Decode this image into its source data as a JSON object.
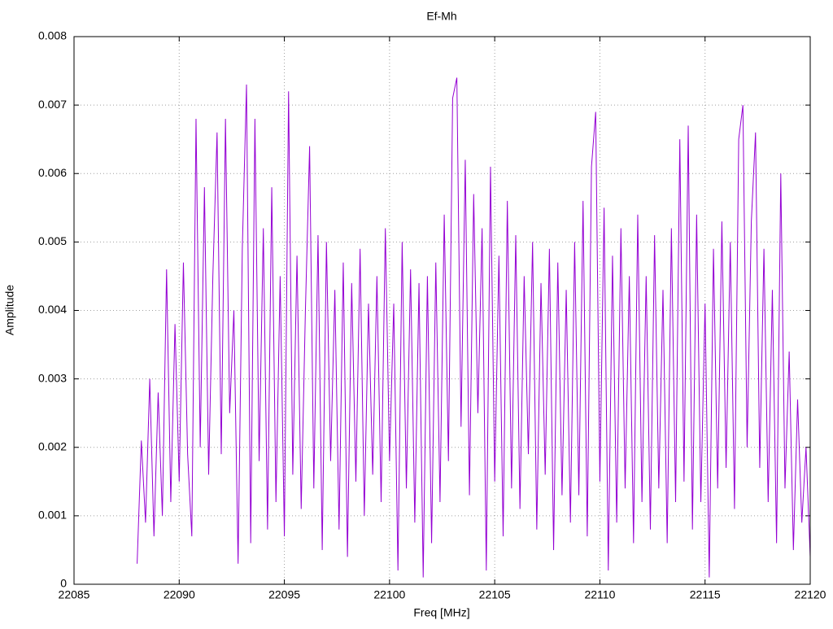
{
  "chart_data": {
    "type": "line",
    "title": "Ef-Mh",
    "x_label": "Freq [MHz]",
    "y_label": "Amplitude",
    "color": "#9400d3",
    "grid": true,
    "xlim": [
      22085,
      22120
    ],
    "xticks": [
      22085,
      22090,
      22095,
      22100,
      22105,
      22110,
      22115,
      22120
    ],
    "ylim": [
      0,
      0.008
    ],
    "yticks": [
      0,
      0.001,
      0.002,
      0.003,
      0.004,
      0.005,
      0.006,
      0.007,
      0.008
    ],
    "x": [
      22088.0,
      22088.2,
      22088.4,
      22088.6,
      22088.8,
      22089.0,
      22089.2,
      22089.4,
      22089.6,
      22089.8,
      22090.0,
      22090.2,
      22090.4,
      22090.6,
      22090.8,
      22091.0,
      22091.2,
      22091.4,
      22091.6,
      22091.8,
      22092.0,
      22092.2,
      22092.4,
      22092.6,
      22092.8,
      22093.0,
      22093.2,
      22093.4,
      22093.6,
      22093.8,
      22094.0,
      22094.2,
      22094.4,
      22094.6,
      22094.8,
      22095.0,
      22095.2,
      22095.4,
      22095.6,
      22095.8,
      22096.0,
      22096.2,
      22096.4,
      22096.6,
      22096.8,
      22097.0,
      22097.2,
      22097.4,
      22097.6,
      22097.8,
      22098.0,
      22098.2,
      22098.4,
      22098.6,
      22098.8,
      22099.0,
      22099.2,
      22099.4,
      22099.6,
      22099.8,
      22100.0,
      22100.2,
      22100.4,
      22100.6,
      22100.8,
      22101.0,
      22101.2,
      22101.4,
      22101.6,
      22101.8,
      22102.0,
      22102.2,
      22102.4,
      22102.6,
      22102.8,
      22103.0,
      22103.2,
      22103.4,
      22103.6,
      22103.8,
      22104.0,
      22104.2,
      22104.4,
      22104.6,
      22104.8,
      22105.0,
      22105.2,
      22105.4,
      22105.6,
      22105.8,
      22106.0,
      22106.2,
      22106.4,
      22106.6,
      22106.8,
      22107.0,
      22107.2,
      22107.4,
      22107.6,
      22107.8,
      22108.0,
      22108.2,
      22108.4,
      22108.6,
      22108.8,
      22109.0,
      22109.2,
      22109.4,
      22109.6,
      22109.8,
      22110.0,
      22110.2,
      22110.4,
      22110.6,
      22110.8,
      22111.0,
      22111.2,
      22111.4,
      22111.6,
      22111.8,
      22112.0,
      22112.2,
      22112.4,
      22112.6,
      22112.8,
      22113.0,
      22113.2,
      22113.4,
      22113.6,
      22113.8,
      22114.0,
      22114.2,
      22114.4,
      22114.6,
      22114.8,
      22115.0,
      22115.2,
      22115.4,
      22115.6,
      22115.8,
      22116.0,
      22116.2,
      22116.4,
      22116.6,
      22116.8,
      22117.0,
      22117.2,
      22117.4,
      22117.6,
      22117.8,
      22118.0,
      22118.2,
      22118.4,
      22118.6,
      22118.8,
      22119.0,
      22119.2,
      22119.4,
      22119.6,
      22119.8,
      22120.0
    ],
    "values": [
      0.0003,
      0.0021,
      0.0009,
      0.003,
      0.0007,
      0.0028,
      0.001,
      0.0046,
      0.0012,
      0.0038,
      0.0015,
      0.0047,
      0.0019,
      0.0007,
      0.0068,
      0.002,
      0.0058,
      0.0016,
      0.0045,
      0.0066,
      0.0019,
      0.0068,
      0.0025,
      0.004,
      0.0003,
      0.0049,
      0.0073,
      0.0006,
      0.0068,
      0.0018,
      0.0052,
      0.0008,
      0.0058,
      0.0012,
      0.0045,
      0.0007,
      0.0072,
      0.0016,
      0.0048,
      0.0011,
      0.004,
      0.0064,
      0.0014,
      0.0051,
      0.0005,
      0.005,
      0.0018,
      0.0043,
      0.0008,
      0.0047,
      0.0004,
      0.0044,
      0.0015,
      0.0049,
      0.001,
      0.0041,
      0.0016,
      0.0045,
      0.0012,
      0.0052,
      0.0018,
      0.0041,
      0.0002,
      0.005,
      0.0014,
      0.0046,
      0.0009,
      0.0044,
      0.0001,
      0.0045,
      0.0006,
      0.0047,
      0.0012,
      0.0054,
      0.0018,
      0.0071,
      0.0074,
      0.0023,
      0.0062,
      0.0013,
      0.0057,
      0.0025,
      0.0052,
      0.0002,
      0.0061,
      0.0015,
      0.0048,
      0.0007,
      0.0056,
      0.0014,
      0.0051,
      0.0011,
      0.0045,
      0.0019,
      0.005,
      0.0008,
      0.0044,
      0.0016,
      0.0049,
      0.0005,
      0.0047,
      0.0013,
      0.0043,
      0.0009,
      0.005,
      0.0013,
      0.0056,
      0.0007,
      0.0061,
      0.0069,
      0.0015,
      0.0055,
      0.0002,
      0.0048,
      0.0009,
      0.0052,
      0.0014,
      0.0045,
      0.0006,
      0.0054,
      0.0012,
      0.0045,
      0.0008,
      0.0051,
      0.0014,
      0.0043,
      0.0006,
      0.0052,
      0.0012,
      0.0065,
      0.0015,
      0.0067,
      0.0008,
      0.0054,
      0.0012,
      0.0041,
      0.0001,
      0.0049,
      0.0014,
      0.0053,
      0.0017,
      0.005,
      0.0011,
      0.0065,
      0.007,
      0.002,
      0.0053,
      0.0066,
      0.0017,
      0.0049,
      0.0012,
      0.0043,
      0.0006,
      0.006,
      0.0014,
      0.0034,
      0.0005,
      0.0027,
      0.0009,
      0.002,
      0.0004
    ]
  }
}
